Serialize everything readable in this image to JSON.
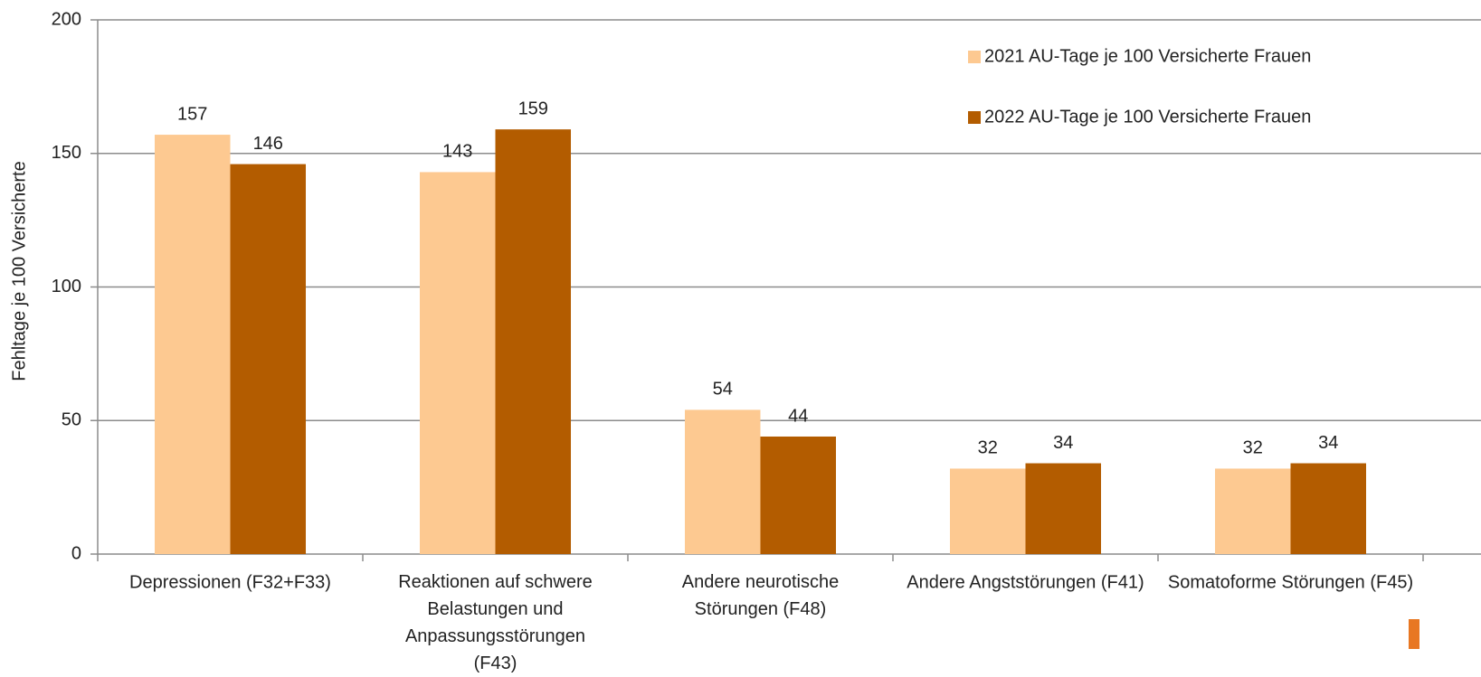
{
  "chart_data": {
    "type": "bar",
    "y_label": "Fehltage je 100 Versicherte",
    "categories": [
      "Depressionen (F32+F33)",
      "Reaktionen auf schwere Belastungen und Anpassungsstörungen (F43)",
      "Andere neurotische Störungen (F48)",
      "Andere Angststörungen (F41)",
      "Somatoforme Störungen (F45)"
    ],
    "series": [
      {
        "name": "2021 AU-Tage je 100 Versicherte Frauen",
        "color": "#fdc991",
        "values": [
          157,
          143,
          54,
          32,
          32
        ]
      },
      {
        "name": "2022 AU-Tage je 100 Versicherte Frauen",
        "color": "#b35c00",
        "values": [
          146,
          159,
          44,
          34,
          34
        ]
      }
    ],
    "ylim": [
      0,
      200
    ],
    "yticks": [
      0,
      50,
      100,
      150,
      200
    ],
    "grid": true,
    "legend": "top-right"
  }
}
